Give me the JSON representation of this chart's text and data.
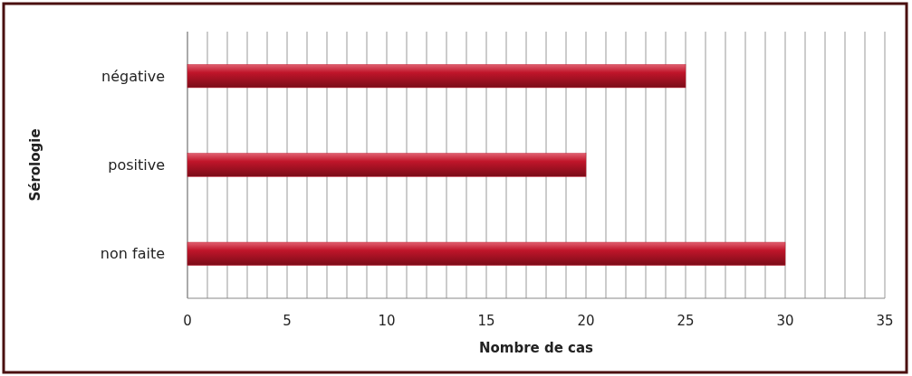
{
  "chart_data": {
    "type": "bar",
    "orientation": "horizontal",
    "ylabel": "Sérologie",
    "xlabel": "Nombre de cas",
    "categories": [
      "négative",
      "positive",
      "non faite"
    ],
    "values": [
      25,
      20,
      30
    ],
    "color": "#c0152a",
    "xlim": [
      0,
      35
    ],
    "xticks": [
      0,
      {
        "value": 1,
        "label": null
      },
      {
        "value": 2,
        "label": null
      },
      {
        "value": 3,
        "label": null
      },
      {
        "value": 4,
        "label": null
      },
      5,
      {
        "value": 6,
        "label": null
      },
      {
        "value": 7,
        "label": null
      },
      {
        "value": 8,
        "label": null
      },
      {
        "value": 9,
        "label": null
      },
      10,
      {
        "value": 11,
        "label": null
      },
      {
        "value": 12,
        "label": null
      },
      {
        "value": 13,
        "label": null
      },
      {
        "value": 14,
        "label": null
      },
      15,
      {
        "value": 16,
        "label": null
      },
      {
        "value": 17,
        "label": null
      },
      {
        "value": 18,
        "label": null
      },
      {
        "value": 19,
        "label": null
      },
      20,
      {
        "value": 21,
        "label": null
      },
      {
        "value": 22,
        "label": null
      },
      {
        "value": 23,
        "label": null
      },
      {
        "value": 24,
        "label": null
      },
      25,
      {
        "value": 26,
        "label": null
      },
      {
        "value": 27,
        "label": null
      },
      {
        "value": 28,
        "label": null
      },
      {
        "value": 29,
        "label": null
      },
      30,
      {
        "value": 31,
        "label": null
      },
      {
        "value": 32,
        "label": null
      },
      {
        "value": 33,
        "label": null
      },
      {
        "value": 34,
        "label": null
      },
      35
    ],
    "grid": "x"
  }
}
